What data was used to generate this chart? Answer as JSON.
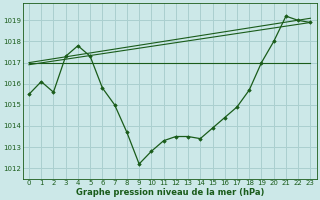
{
  "title": "Graphe pression niveau de la mer (hPa)",
  "bg_color": "#cce8e8",
  "grid_color": "#aacfcf",
  "line_color": "#1a5c1a",
  "xlim": [
    -0.5,
    23.5
  ],
  "ylim": [
    1011.5,
    1019.8
  ],
  "yticks": [
    1012,
    1013,
    1014,
    1015,
    1016,
    1017,
    1018,
    1019
  ],
  "xticks": [
    0,
    1,
    2,
    3,
    4,
    5,
    6,
    7,
    8,
    9,
    10,
    11,
    12,
    13,
    14,
    15,
    16,
    17,
    18,
    19,
    20,
    21,
    22,
    23
  ],
  "series1_x": [
    0,
    1,
    2,
    3,
    4,
    5,
    6,
    7,
    8,
    9,
    10,
    11,
    12,
    13,
    14,
    15,
    16,
    17,
    18,
    19,
    20,
    21,
    22,
    23
  ],
  "series1_y": [
    1015.5,
    1016.1,
    1015.6,
    1017.3,
    1017.8,
    1017.3,
    1015.8,
    1015.0,
    1013.7,
    1012.2,
    1012.8,
    1013.3,
    1013.5,
    1013.5,
    1013.4,
    1013.9,
    1014.4,
    1014.9,
    1015.7,
    1017.0,
    1018.0,
    1019.2,
    1019.0,
    1018.9
  ],
  "series2_x": [
    0,
    23
  ],
  "series2_y": [
    1017.0,
    1017.0
  ],
  "series3_x": [
    0,
    23
  ],
  "series3_y": [
    1016.9,
    1018.9
  ],
  "series4_x": [
    0,
    23
  ],
  "series4_y": [
    1017.0,
    1019.1
  ]
}
